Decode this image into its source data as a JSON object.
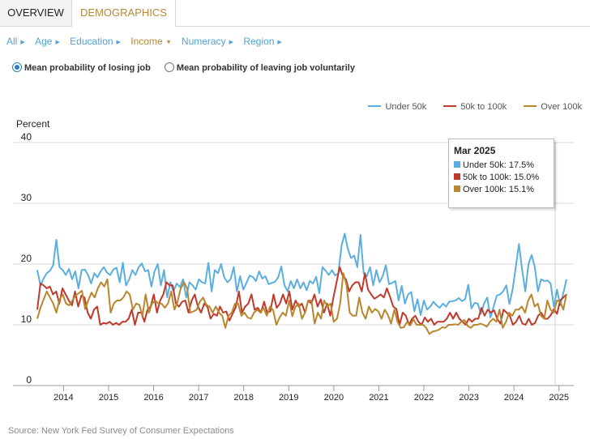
{
  "tabs": [
    {
      "label": "OVERVIEW"
    },
    {
      "label": "DEMOGRAPHICS"
    }
  ],
  "filters": [
    {
      "label": "All"
    },
    {
      "label": "Age"
    },
    {
      "label": "Education"
    },
    {
      "label": "Income"
    },
    {
      "label": "Numeracy"
    },
    {
      "label": "Region"
    }
  ],
  "radios": [
    {
      "label": "Mean probability of losing job",
      "selected": true
    },
    {
      "label": "Mean probability of leaving job voluntarily",
      "selected": false
    }
  ],
  "legend": [
    {
      "label": "Under 50k",
      "color": "#5aaee0"
    },
    {
      "label": "50k to 100k",
      "color": "#c0392b"
    },
    {
      "label": "Over 100k",
      "color": "#b8862d"
    }
  ],
  "tooltip": {
    "title": "Mar 2025",
    "rows": [
      {
        "text": "Under 50k: 17.5%",
        "color": "#5aaee0"
      },
      {
        "text": "50k to 100k: 15.0%",
        "color": "#c0392b"
      },
      {
        "text": "Over 100k: 15.1%",
        "color": "#b8862d"
      }
    ]
  },
  "source": "Source: New York Fed Survey of Consumer Expectations",
  "chart_data": {
    "type": "line",
    "title": "",
    "ylabel": "Percent",
    "xlabel": "",
    "ylim": [
      0,
      40
    ],
    "yticks": [
      0,
      10,
      20,
      30,
      40
    ],
    "xticks": [
      "2014",
      "2015",
      "2016",
      "2017",
      "2018",
      "2019",
      "2020",
      "2021",
      "2022",
      "2023",
      "2024",
      "2025"
    ],
    "x_start": "2013-06",
    "x_end": "2025-03",
    "frequency": "monthly",
    "series": [
      {
        "name": "Under 50k",
        "color": "#5aaee0",
        "values": [
          19.0,
          16.5,
          17.6,
          18.5,
          18.9,
          19.8,
          24.0,
          19.5,
          19.0,
          18.2,
          19.2,
          17.5,
          18.8,
          16.0,
          19.0,
          19.1,
          18.2,
          16.8,
          18.5,
          17.8,
          18.8,
          19.5,
          18.6,
          18.2,
          19.1,
          19.4,
          17.0,
          20.2,
          16.5,
          17.5,
          19.0,
          18.2,
          19.5,
          20.1,
          18.8,
          19.0,
          16.3,
          18.8,
          20.0,
          16.5,
          19.0,
          14.5,
          17.0,
          15.5,
          16.8,
          16.2,
          17.5,
          14.5,
          17.0,
          16.5,
          15.8,
          17.5,
          17.0,
          16.8,
          20.2,
          15.5,
          19.0,
          18.5,
          20.0,
          17.8,
          17.0,
          17.5,
          19.5,
          15.5,
          18.0,
          15.8,
          16.9,
          18.1,
          17.9,
          17.2,
          18.8,
          17.6,
          18.0,
          16.7,
          16.9,
          17.1,
          17.8,
          19.6,
          16.5,
          15.5,
          17.2,
          16.0,
          17.5,
          16.0,
          17.0,
          15.7,
          17.2,
          16.8,
          17.9,
          15.2,
          19.5,
          18.9,
          18.2,
          19.0,
          18.1,
          18.5,
          23.0,
          25.0,
          22.5,
          21.0,
          21.4,
          19.5,
          24.8,
          18.5,
          18.0,
          19.5,
          16.5,
          19.0,
          17.0,
          18.0,
          19.8,
          16.7,
          16.9,
          17.2,
          14.0,
          16.4,
          13.5,
          15.0,
          15.4,
          12.2,
          14.2,
          11.6,
          14.0,
          12.5,
          13.0,
          13.8,
          13.2,
          12.8,
          13.5,
          13.0,
          13.8,
          13.9,
          14.0,
          14.4,
          13.9,
          14.2,
          16.6,
          12.7,
          13.6,
          13.5,
          11.8,
          13.5,
          14.5,
          11.2,
          13.0,
          14.8,
          15.0,
          15.5,
          16.5,
          13.4,
          15.8,
          19.5,
          23.3,
          19.0,
          15.5,
          20.0,
          21.5,
          19.5,
          15.5,
          17.5,
          17.2,
          17.3,
          16.8,
          13.0,
          15.8,
          13.2,
          15.2,
          17.5
        ]
      },
      {
        "name": "50k to 100k",
        "color": "#c0392b",
        "values": [
          12.5,
          16.8,
          16.5,
          16.0,
          16.3,
          15.0,
          15.5,
          13.5,
          16.0,
          15.0,
          14.0,
          13.2,
          15.5,
          13.0,
          14.8,
          14.5,
          12.0,
          11.0,
          12.5,
          13.0,
          10.0,
          10.3,
          10.2,
          10.5,
          10.0,
          10.3,
          10.0,
          10.5,
          10.5,
          11.0,
          12.5,
          10.0,
          12.0,
          12.0,
          10.5,
          12.5,
          13.0,
          15.0,
          12.0,
          14.0,
          15.0,
          17.0,
          16.5,
          16.5,
          13.5,
          13.0,
          13.8,
          14.0,
          12.0,
          14.0,
          15.0,
          13.0,
          12.0,
          13.5,
          13.0,
          11.0,
          11.8,
          11.5,
          13.0,
          12.0,
          12.2,
          10.7,
          11.8,
          12.9,
          15.5,
          12.0,
          13.0,
          13.5,
          15.0,
          12.5,
          12.8,
          12.0,
          13.8,
          12.0,
          12.2,
          15.0,
          12.8,
          13.5,
          15.0,
          13.5,
          15.5,
          12.5,
          14.0,
          13.0,
          13.5,
          12.0,
          14.0,
          13.5,
          15.0,
          13.0,
          14.2,
          12.0,
          13.5,
          11.5,
          14.5,
          17.0,
          19.5,
          18.0,
          17.5,
          15.5,
          16.5,
          17.0,
          17.0,
          15.5,
          18.5,
          15.8,
          15.0,
          14.3,
          14.6,
          15.0,
          14.5,
          16.0,
          14.6,
          13.0,
          12.6,
          10.0,
          12.0,
          11.5,
          10.0,
          11.0,
          11.5,
          10.5,
          10.0,
          11.2,
          10.5,
          11.0,
          10.0,
          10.5,
          10.5,
          10.5,
          11.0,
          12.0,
          11.0,
          12.0,
          11.0,
          10.5,
          10.0,
          11.0,
          10.5,
          11.0,
          11.0,
          12.8,
          11.5,
          12.5,
          12.0,
          12.4,
          11.0,
          10.2,
          12.5,
          12.0,
          11.5,
          10.0,
          10.5,
          11.5,
          10.2,
          10.0,
          11.0,
          10.0,
          10.3,
          11.5,
          12.0,
          11.0,
          11.0,
          11.6,
          12.6,
          11.8,
          14.0,
          14.5,
          15.0
        ]
      },
      {
        "name": "Over 100k",
        "color": "#b8862d",
        "values": [
          11.0,
          12.8,
          14.2,
          15.5,
          14.5,
          13.5,
          12.0,
          14.2,
          15.0,
          13.5,
          13.2,
          14.0,
          14.8,
          15.2,
          15.6,
          12.6,
          14.0,
          15.3,
          14.5,
          16.0,
          17.0,
          16.3,
          17.5,
          12.0,
          13.5,
          14.0,
          14.0,
          14.5,
          15.5,
          15.0,
          12.5,
          13.5,
          13.3,
          11.5,
          15.0,
          12.0,
          13.5,
          14.0,
          13.5,
          13.5,
          12.8,
          13.5,
          15.5,
          12.5,
          13.8,
          16.0,
          17.0,
          16.0,
          12.0,
          12.2,
          12.5,
          13.8,
          14.5,
          13.3,
          13.0,
          12.0,
          13.0,
          12.0,
          11.5,
          9.5,
          11.5,
          12.0,
          13.5,
          13.5,
          11.5,
          12.0,
          11.2,
          11.0,
          12.0,
          12.5,
          12.0,
          12.8,
          11.5,
          13.0,
          12.4,
          10.0,
          11.2,
          12.0,
          11.5,
          14.0,
          11.4,
          13.0,
          13.5,
          11.0,
          12.0,
          14.0,
          14.0,
          10.2,
          12.0,
          11.0,
          14.0,
          13.0,
          13.5,
          10.5,
          11.0,
          13.5,
          18.5,
          16.5,
          12.0,
          11.5,
          11.5,
          14.5,
          12.0,
          11.0,
          13.0,
          12.0,
          12.6,
          12.2,
          11.0,
          12.5,
          11.6,
          10.2,
          12.5,
          10.5,
          9.5,
          9.6,
          10.5,
          9.9,
          10.9,
          10.0,
          10.0,
          10.0,
          9.5,
          8.5,
          8.9,
          9.0,
          9.2,
          9.6,
          9.5,
          10.0,
          10.0,
          10.1,
          10.0,
          10.5,
          10.8,
          9.8,
          9.5,
          10.0,
          10.0,
          10.2,
          10.0,
          9.7,
          10.5,
          11.0,
          10.5,
          12.5,
          9.5,
          10.5,
          12.0,
          11.5,
          12.5,
          12.5,
          13.0,
          12.0,
          14.0,
          15.0,
          13.0,
          13.5,
          11.5,
          11.0,
          14.0,
          12.5,
          12.0,
          14.0,
          13.8,
          12.5,
          15.1
        ]
      }
    ]
  }
}
